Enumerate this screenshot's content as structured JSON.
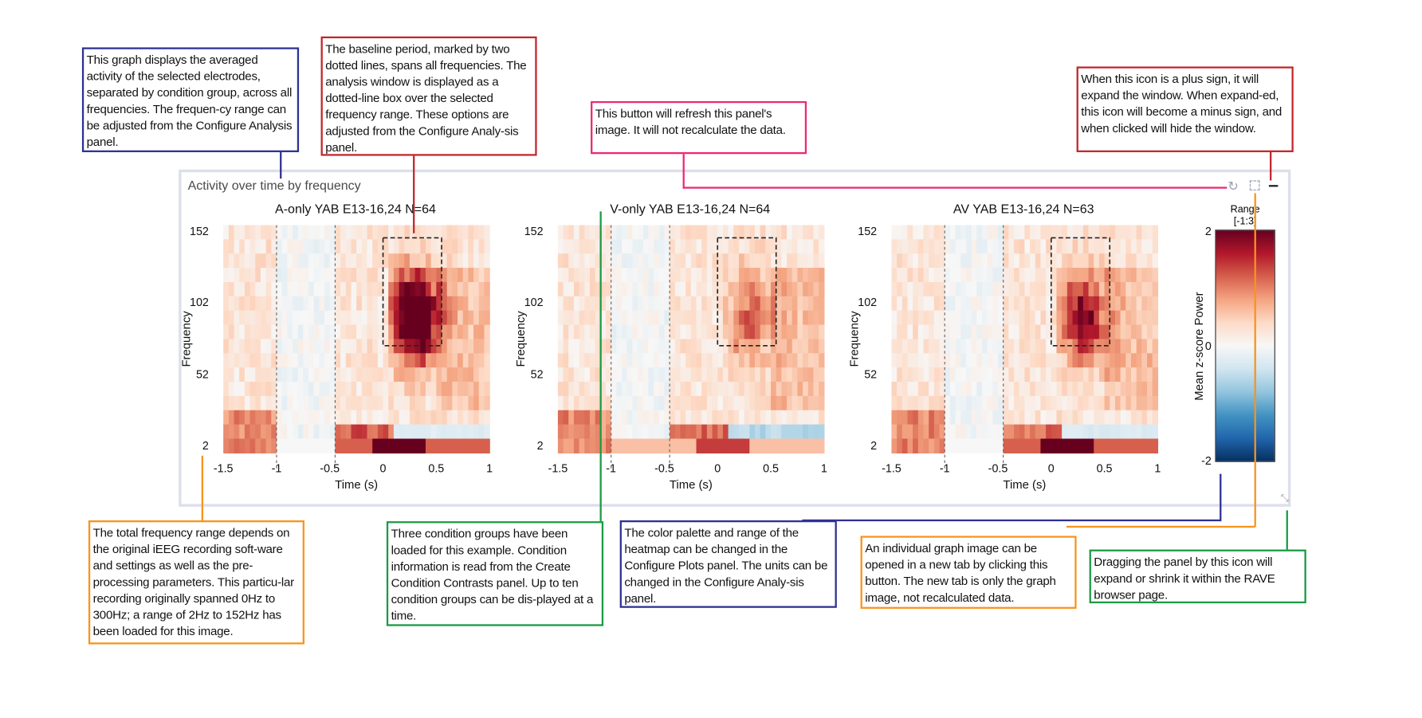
{
  "panel": {
    "title": "Activity over time by frequency",
    "icons": [
      "refresh-icon",
      "expand-icon",
      "minus-icon",
      "resize-grip-icon"
    ]
  },
  "plots": [
    {
      "title": "A-only YAB E13-16,24 N=64",
      "ylabel": "Frequency",
      "xlabel": "Time (s)"
    },
    {
      "title": "V-only YAB E13-16,24 N=64",
      "ylabel": "Frequency",
      "xlabel": "Time (s)"
    },
    {
      "title": "AV YAB E13-16,24 N=63",
      "ylabel": "Frequency",
      "xlabel": "Time (s)"
    }
  ],
  "axes": {
    "x_ticks": [
      "-1.5",
      "-1",
      "-0.5",
      "0",
      "0.5",
      "1"
    ],
    "y_ticks": [
      "152",
      "102",
      "52",
      "2"
    ],
    "xlim": [
      -1.5,
      1
    ],
    "ylim": [
      2,
      152
    ],
    "baseline_window": [
      -1,
      -0.45
    ],
    "analysis_window": {
      "time": [
        0,
        0.55
      ],
      "frequency": [
        72,
        152
      ]
    }
  },
  "colorbar": {
    "title_line1": "Range",
    "title_line2": "[-1:3]",
    "label": "Mean z-score Power",
    "ticks": [
      "2",
      "0",
      "-2"
    ],
    "palette": [
      "#67001f",
      "#b2182b",
      "#d6604d",
      "#f4a582",
      "#fddbc7",
      "#f7f7f7",
      "#d1e5f0",
      "#92c5de",
      "#4393c3",
      "#2166ac",
      "#053061"
    ]
  },
  "callouts": [
    {
      "color": "#2e3192",
      "text": "This graph displays the averaged activity of the selected electrodes, separated by condition group, across all frequencies. The frequen-cy range can be adjusted from the Configure Analysis panel."
    },
    {
      "color": "#c1272d",
      "text": "The baseline period, marked by two dotted lines, spans all frequencies. The analysis window is displayed as a dotted-line box over the selected frequency range. These options are adjusted from the Configure Analy-sis panel."
    },
    {
      "color": "#ec2a73",
      "text": "This button will refresh this panel's image. It will not recalculate the data."
    },
    {
      "color": "#c1272d",
      "text": "When this icon is a plus sign, it will expand the window. When expand-ed, this icon will become a minus sign, and when clicked will hide the window."
    },
    {
      "color": "#f7941d",
      "text": "The total frequency range depends on the original iEEG recording soft-ware and settings as well as the pre-processing parameters. This particu-lar recording originally spanned 0Hz to 300Hz; a range of 2Hz to 152Hz has been loaded for this image."
    },
    {
      "color": "#1b9a45",
      "text": "Three condition groups have been loaded for this example. Condition information is read from the Create Condition Contrasts panel. Up to ten condition groups can be dis-played at a time."
    },
    {
      "color": "#2e3192",
      "text": "The color palette and range of the heatmap can be changed in the Configure Plots panel. The units can be changed in the Configure Analy-sis panel."
    },
    {
      "color": "#f7941d",
      "text": "An individual graph image can be opened in a new tab by clicking this button. The new tab is only the graph image, not recalculated data."
    },
    {
      "color": "#1b9a45",
      "text": "Dragging the panel by this icon will expand or shrink it within the RAVE browser page."
    }
  ]
}
